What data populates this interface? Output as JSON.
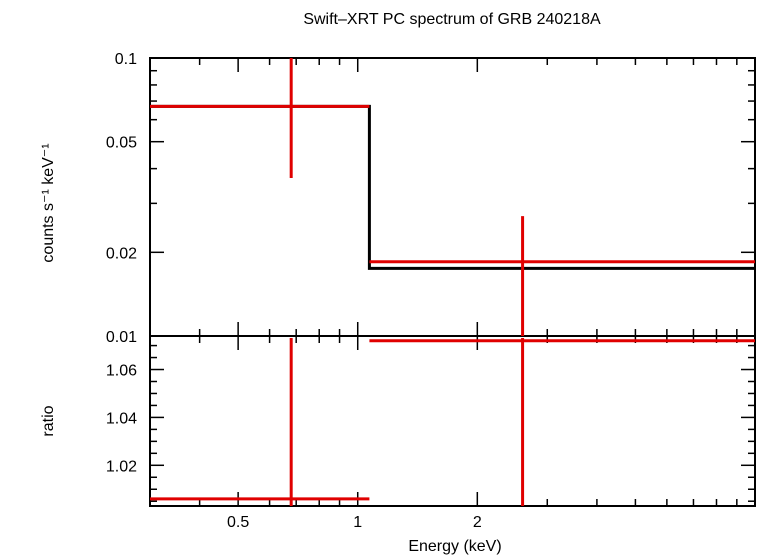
{
  "chart_data": [
    {
      "type": "line",
      "title": "Swift–XRT PC spectrum of GRB 240218A",
      "ylabel": "counts s⁻¹ keV⁻¹",
      "xscale": "log",
      "yscale": "log",
      "xlim": [
        0.3,
        10
      ],
      "ylim": [
        0.01,
        0.1
      ],
      "grid": false,
      "y_ticks": [
        {
          "value": 0.01,
          "label": "0.01"
        },
        {
          "value": 0.02,
          "label": "0.02"
        },
        {
          "value": 0.05,
          "label": "0.05"
        },
        {
          "value": 0.1,
          "label": "0.1"
        }
      ],
      "model": {
        "color": "#000000",
        "steps": [
          {
            "x0": 0.3,
            "x1": 1.07,
            "y": 0.067
          },
          {
            "x0": 1.07,
            "x1": 10,
            "y": 0.0175
          }
        ]
      },
      "data": {
        "color": "#e00000",
        "points": [
          {
            "x": 0.68,
            "xlo": 0.3,
            "xhi": 1.07,
            "y": 0.067,
            "ylo": 0.037,
            "yhi": 0.1
          },
          {
            "x": 2.6,
            "xlo": 1.07,
            "xhi": 10,
            "y": 0.0185,
            "ylo": 0.01,
            "yhi": 0.027
          }
        ]
      }
    },
    {
      "type": "line",
      "xlabel": "Energy (keV)",
      "ylabel": "ratio",
      "xscale": "log",
      "xlim": [
        0.3,
        10
      ],
      "ylim": [
        1.003,
        1.074
      ],
      "grid": false,
      "x_ticks": [
        {
          "value": 0.5,
          "label": "0.5"
        },
        {
          "value": 1,
          "label": "1"
        },
        {
          "value": 2,
          "label": "2"
        }
      ],
      "y_ticks": [
        {
          "value": 1.02,
          "label": "1.02"
        },
        {
          "value": 1.04,
          "label": "1.04"
        },
        {
          "value": 1.06,
          "label": "1.06"
        }
      ],
      "data": {
        "color": "#e00000",
        "points": [
          {
            "x": 0.68,
            "xlo": 0.3,
            "xhi": 1.07,
            "y": 1.006,
            "ylo": 1.003,
            "yhi": 1.074
          },
          {
            "x": 2.6,
            "xlo": 1.07,
            "xhi": 10,
            "y": 1.072,
            "ylo": 1.003,
            "yhi": 1.074
          }
        ]
      }
    }
  ]
}
